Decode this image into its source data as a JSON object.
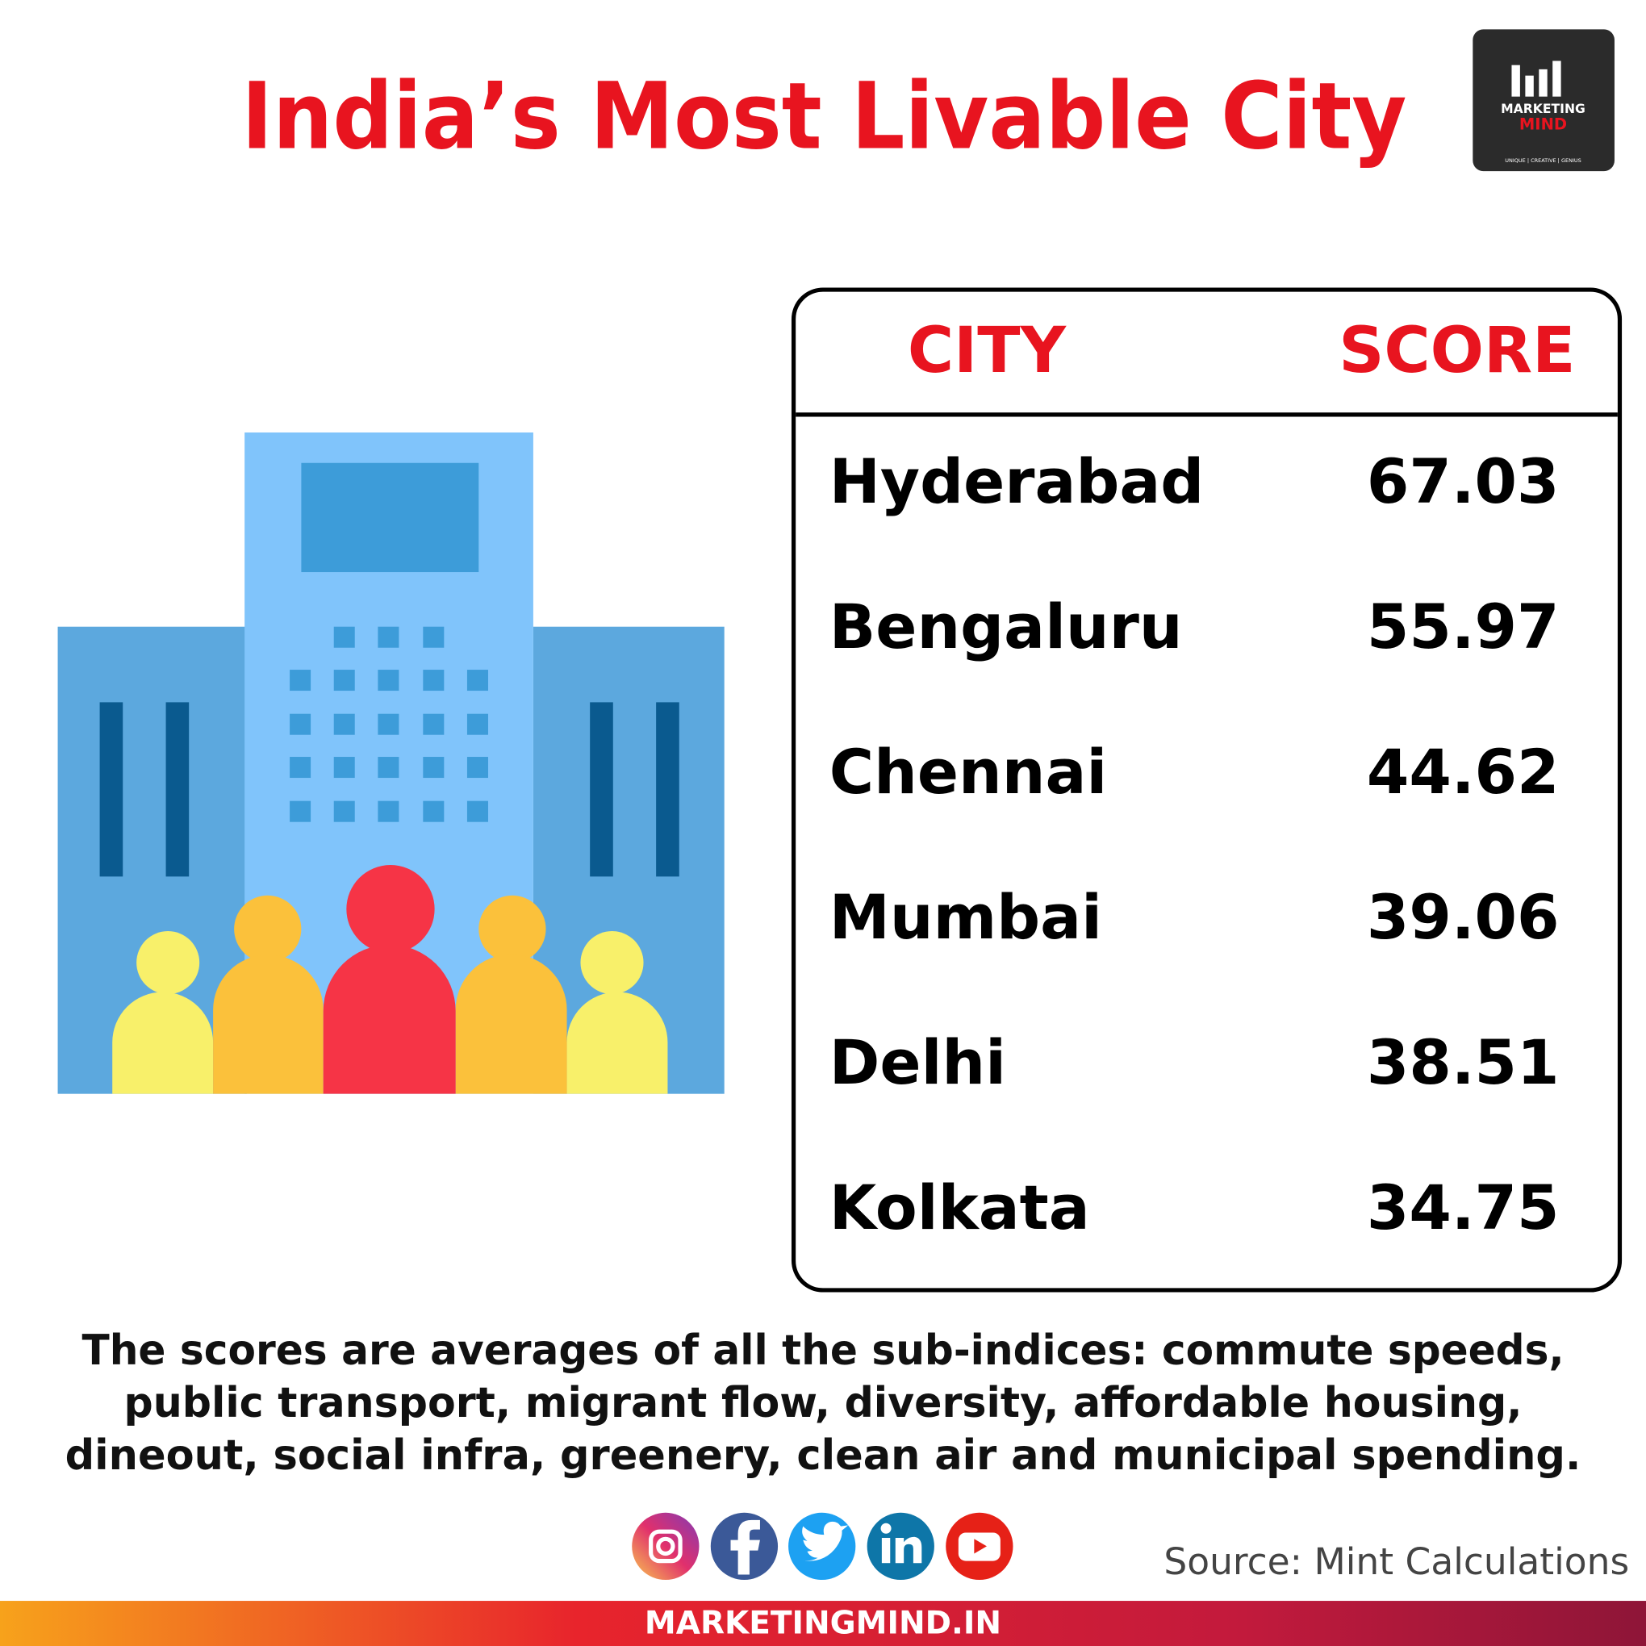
{
  "header": {
    "title": "India’s Most Livable City"
  },
  "logo": {
    "line1": "MARKETING",
    "line2": "MIND",
    "tagline": "UNIQUE | CREATIVE | GENIUS"
  },
  "table": {
    "columns": [
      "CITY",
      "SCORE"
    ],
    "rows": [
      [
        "Hyderabad",
        "67.03"
      ],
      [
        "Bengaluru",
        "55.97"
      ],
      [
        "Chennai",
        "44.62"
      ],
      [
        "Mumbai",
        "39.06"
      ],
      [
        "Delhi",
        "38.51"
      ],
      [
        "Kolkata",
        "34.75"
      ]
    ]
  },
  "note": {
    "lines": [
      "The scores are averages of all the sub-indices: commute speeds,",
      "public transport, migrant flow, diversity, affordable housing,",
      "dineout, social infra, greenery, clean air and municipal spending."
    ]
  },
  "source": "Source: Mint Calculations",
  "footer": {
    "url": "MARKETINGMIND.IN"
  }
}
